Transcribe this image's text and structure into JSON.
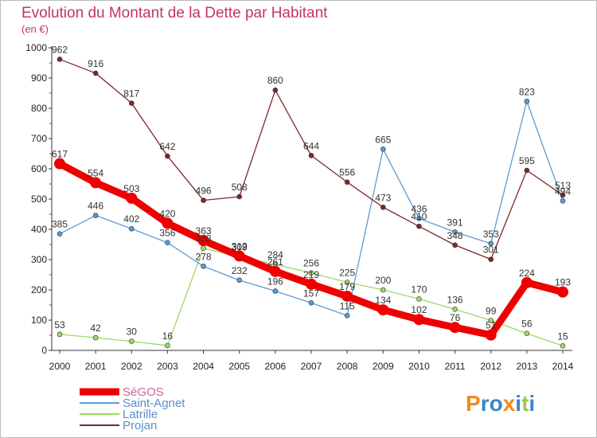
{
  "chart_data": {
    "type": "line",
    "title": "Evolution du Montant de la Dette par Habitant",
    "subtitle": "(en €)",
    "categories": [
      "2000",
      "2001",
      "2002",
      "2003",
      "2004",
      "2005",
      "2006",
      "2007",
      "2008",
      "2009",
      "2010",
      "2011",
      "2012",
      "2013",
      "2014"
    ],
    "ylim": [
      0,
      1000
    ],
    "yticks": [
      0,
      100,
      200,
      300,
      400,
      500,
      600,
      700,
      800,
      900,
      1000
    ],
    "grid": false,
    "legend_position": "bottom-left",
    "series": [
      {
        "name": "SéGOS",
        "color": "#ee0000",
        "values": [
          617,
          554,
          503,
          420,
          363,
          312,
          261,
          219,
          179,
          134,
          102,
          76,
          51,
          224,
          193
        ]
      },
      {
        "name": "Saint-Agnet",
        "color": "#5b9bd5",
        "values": [
          385,
          446,
          402,
          356,
          278,
          232,
          196,
          157,
          115,
          665,
          436,
          391,
          353,
          823,
          494
        ]
      },
      {
        "name": "Latrille",
        "color": "#9dd866",
        "values": [
          53,
          42,
          30,
          16,
          338,
          309,
          284,
          256,
          225,
          200,
          170,
          136,
          99,
          56,
          15
        ]
      },
      {
        "name": "Projan",
        "color": "#7b2a2a",
        "values": [
          962,
          916,
          817,
          642,
          496,
          508,
          860,
          644,
          556,
          473,
          410,
          348,
          301,
          595,
          513
        ]
      }
    ]
  },
  "branding": {
    "logo_text": "Proxiti"
  }
}
